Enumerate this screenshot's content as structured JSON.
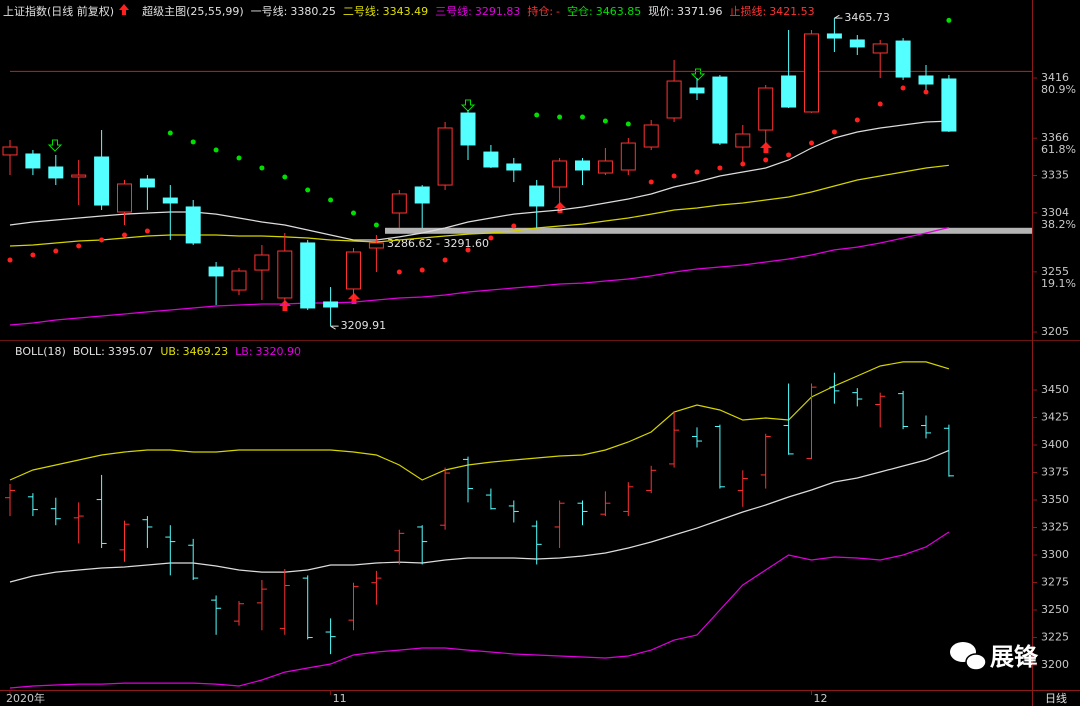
{
  "chart_data": {
    "type": "candlestick",
    "title": "上证指数(日线 前复权)",
    "subtitle": "超级主图(25,55,99)",
    "period_label": "日线",
    "watermark": "展锋",
    "categories": [
      "2020年",
      null,
      null,
      null,
      null,
      null,
      null,
      null,
      null,
      null,
      null,
      null,
      null,
      null,
      "11",
      null,
      null,
      null,
      null,
      null,
      null,
      null,
      null,
      null,
      null,
      null,
      null,
      null,
      null,
      null,
      null,
      null,
      null,
      null,
      null,
      "12",
      null,
      null,
      null,
      null,
      null,
      null
    ],
    "up_color": "#ff3232",
    "down_color": "#54ffff",
    "open": [
      3352.1,
      3352.9,
      3342.1,
      3333.8,
      3350.4,
      3304.7,
      3332.1,
      3316.3,
      3308.9,
      3259.0,
      3239.9,
      3256.5,
      3233.3,
      3279.0,
      3230.0,
      3240.8,
      3274.8,
      3303.9,
      3325.5,
      3327.1,
      3386.9,
      3354.5,
      3344.6,
      3326.3,
      3325.5,
      3347.1,
      3337.1,
      3339.6,
      3358.7,
      3382.8,
      3407.7,
      3416.8,
      3358.7,
      3372.8,
      3417.7,
      3387.8,
      3452.6,
      3447.6,
      3436.8,
      3446.7,
      3417.7,
      3415.2
    ],
    "high": [
      3364.5,
      3356.2,
      3352.1,
      3347.9,
      3372.8,
      3331.3,
      3335.4,
      3327.1,
      3314.7,
      3263.2,
      3258.2,
      3277.3,
      3287.3,
      3281.5,
      3242.4,
      3274.8,
      3285.6,
      3323.0,
      3327.1,
      3379.5,
      3389.4,
      3360.4,
      3349.6,
      3331.3,
      3349.6,
      3349.6,
      3357.9,
      3366.2,
      3381.1,
      3431.0,
      3416.0,
      3418.5,
      3377.0,
      3410.2,
      3455.9,
      3455.9,
      3465.73,
      3451.7,
      3447.6,
      3449.2,
      3426.8,
      3418.5
    ],
    "low": [
      3335.4,
      3335.4,
      3327.1,
      3310.5,
      3306.4,
      3293.9,
      3306.4,
      3281.5,
      3277.3,
      3227.5,
      3235.8,
      3231.6,
      3227.5,
      3223.3,
      3209.91,
      3231.6,
      3254.9,
      3291.4,
      3291.4,
      3323.0,
      3347.9,
      3341.3,
      3329.6,
      3291.4,
      3306.4,
      3327.1,
      3335.4,
      3335.4,
      3356.2,
      3379.5,
      3397.7,
      3360.4,
      3343.8,
      3360.4,
      3391.1,
      3387.0,
      3437.6,
      3435.1,
      3416.0,
      3414.4,
      3406.0,
      3371.2
    ],
    "close": [
      3358.7,
      3341.3,
      3333.0,
      3335.4,
      3310.5,
      3328.0,
      3325.5,
      3312.2,
      3279.0,
      3251.6,
      3255.7,
      3269.0,
      3272.3,
      3225.0,
      3225.8,
      3271.5,
      3279.0,
      3319.7,
      3312.2,
      3374.5,
      3360.4,
      3342.1,
      3339.6,
      3309.7,
      3347.1,
      3339.6,
      3347.1,
      3362.0,
      3377.0,
      3413.5,
      3403.6,
      3362.0,
      3369.5,
      3407.7,
      3391.9,
      3452.6,
      3449.2,
      3441.8,
      3444.3,
      3416.8,
      3411.0,
      3371.96
    ],
    "panels": [
      {
        "readout": [
          {
            "label": "一号线:",
            "value": 3380.25,
            "color": "#e0e0e0"
          },
          {
            "label": "二号线:",
            "value": 3343.49,
            "color": "#e0e000"
          },
          {
            "label": "三号线:",
            "value": 3291.83,
            "color": "#e000e0"
          },
          {
            "label": "持仓:",
            "value": "-",
            "color": "#ff3232"
          },
          {
            "label": "空仓:",
            "value": 3463.85,
            "color": "#00e000"
          },
          {
            "label": "现价:",
            "value": 3371.96,
            "color": "#e0e0e0"
          },
          {
            "label": "止损线:",
            "value": 3421.53,
            "color": "#ff3232"
          }
        ],
        "ylim": [
          3198.4,
          3480.8
        ],
        "yticks": [
          3416,
          3366,
          3335,
          3304,
          3255,
          3205
        ],
        "fib_labels": [
          {
            "value": 3416,
            "label": "80.9%"
          },
          {
            "value": 3366,
            "label": "61.8%"
          },
          {
            "value": 3304,
            "label": "38.2%"
          },
          {
            "value": 3255,
            "label": "19.1%"
          }
        ],
        "series": [
          {
            "color": "#dcdcdc",
            "values": [
              3293.9,
              3296.4,
              3298.1,
              3299.7,
              3301.4,
              3303.0,
              3303.9,
              3304.7,
              3304.7,
              3303.0,
              3299.7,
              3296.4,
              3293.9,
              3289.8,
              3285.6,
              3281.5,
              3281.5,
              3284.0,
              3287.3,
              3291.4,
              3296.4,
              3299.7,
              3303.0,
              3304.7,
              3306.4,
              3308.9,
              3312.2,
              3315.5,
              3319.7,
              3325.5,
              3329.6,
              3334.6,
              3337.9,
              3341.3,
              3347.9,
              3357.9,
              3366.2,
              3371.2,
              3374.5,
              3377.0,
              3379.5,
              3380.25
            ]
          },
          {
            "color": "#d4d400",
            "values": [
              3276.5,
              3277.3,
              3279.0,
              3280.6,
              3281.5,
              3283.1,
              3284.8,
              3285.6,
              3285.6,
              3285.6,
              3284.8,
              3284.8,
              3284.0,
              3283.1,
              3281.5,
              3280.6,
              3279.8,
              3281.5,
              3283.1,
              3284.8,
              3286.4,
              3287.3,
              3288.9,
              3291.4,
              3293.1,
              3294.7,
              3297.2,
              3299.7,
              3303.0,
              3306.4,
              3308.0,
              3310.5,
              3312.2,
              3314.7,
              3317.2,
              3321.3,
              3326.3,
              3331.3,
              3334.6,
              3337.9,
              3341.3,
              3343.49
            ]
          },
          {
            "color": "#e000e0",
            "values": [
              3210.9,
              3212.5,
              3215.0,
              3216.7,
              3218.3,
              3220.0,
              3221.7,
              3223.3,
              3225.0,
              3226.6,
              3227.5,
              3228.3,
              3228.3,
              3229.1,
              3229.1,
              3229.9,
              3231.6,
              3233.3,
              3234.1,
              3235.8,
              3238.3,
              3239.9,
              3241.6,
              3243.2,
              3244.9,
              3245.7,
              3247.4,
              3249.1,
              3251.6,
              3254.9,
              3257.4,
              3259.0,
              3260.7,
              3263.2,
              3265.7,
              3269.0,
              3273.2,
              3275.6,
              3279.0,
              3283.1,
              3287.3,
              3291.83
            ]
          }
        ],
        "dots": [
          {
            "color": "#ff2020",
            "values": [
              3264.8,
              3269.0,
              3272.3,
              3276.5,
              3281.5,
              3285.6,
              3288.9,
              null,
              null,
              null,
              null,
              null,
              null,
              null,
              null,
              null,
              null,
              3254.9,
              3256.5,
              3264.8,
              3273.2,
              3283.1,
              3293.1,
              null,
              null,
              null,
              null,
              null,
              3329.6,
              3334.6,
              3337.9,
              3341.3,
              3344.6,
              3347.9,
              3352.1,
              3362.0,
              3371.2,
              3381.1,
              3394.4,
              3407.7,
              3404.4,
              null
            ]
          },
          {
            "color": "#00e000",
            "values": [
              null,
              null,
              null,
              null,
              null,
              null,
              null,
              3370.3,
              3362.9,
              3356.2,
              3349.6,
              3341.3,
              3333.8,
              3323.0,
              3314.7,
              3303.9,
              3293.9,
              null,
              null,
              null,
              null,
              null,
              null,
              3385.3,
              3383.6,
              3383.6,
              3380.3,
              3377.8,
              null,
              null,
              null,
              null,
              null,
              null,
              null,
              null,
              null,
              null,
              null,
              null,
              null,
              3463.85
            ]
          }
        ],
        "stop_line": {
          "value": 3421.53,
          "color": "#c81e1e"
        },
        "band": {
          "low": 3286.62,
          "high": 3291.6,
          "label": "3286.62 - 3291.60",
          "color": "#b4b4b4"
        }
      },
      {
        "title": "BOLL(18)",
        "readout": [
          {
            "label": "BOLL:",
            "value": 3395.07,
            "color": "#e0e0e0"
          },
          {
            "label": "UB:",
            "value": 3469.23,
            "color": "#e0e000"
          },
          {
            "label": "LB:",
            "value": "3320.90",
            "color": "#e000e0"
          }
        ],
        "ylim": [
          3177.3,
          3490.9
        ],
        "yticks": [
          3450,
          3425,
          3400,
          3375,
          3350,
          3325,
          3300,
          3275,
          3250,
          3225,
          3200
        ],
        "series": [
          {
            "color": "#dcdcdc",
            "values": [
              3275.5,
              3280.9,
              3284.5,
              3286.4,
              3288.2,
              3289.1,
              3290.9,
              3292.7,
              3292.7,
              3290.0,
              3286.4,
              3284.5,
              3284.5,
              3286.4,
              3290.9,
              3290.9,
              3292.7,
              3293.6,
              3292.7,
              3295.5,
              3297.3,
              3297.3,
              3297.3,
              3296.4,
              3297.3,
              3299.1,
              3301.8,
              3306.4,
              3311.8,
              3318.2,
              3324.5,
              3331.8,
              3339.1,
              3345.5,
              3352.7,
              3359.1,
              3366.4,
              3370.0,
              3375.5,
              3380.9,
              3386.4,
              3395.07
            ]
          },
          {
            "color": "#d4d400",
            "values": [
              3368.2,
              3377.3,
              3381.8,
              3386.4,
              3390.9,
              3393.6,
              3395.5,
              3395.5,
              3393.6,
              3393.6,
              3395.5,
              3395.5,
              3395.5,
              3395.5,
              3395.5,
              3393.6,
              3390.9,
              3381.8,
              3368.2,
              3377.3,
              3381.8,
              3384.5,
              3386.4,
              3388.2,
              3390.0,
              3390.9,
              3395.5,
              3402.7,
              3411.8,
              3430.0,
              3436.4,
              3431.8,
              3422.7,
              3424.5,
              3422.7,
              3443.6,
              3453.6,
              3462.7,
              3471.8,
              3475.5,
              3475.5,
              3469.23
            ]
          },
          {
            "color": "#e000e0",
            "values": [
              3179.1,
              3180.9,
              3181.8,
              3182.7,
              3182.7,
              3183.6,
              3183.6,
              3183.6,
              3183.6,
              3182.7,
              3180.9,
              3186.4,
              3193.6,
              3197.3,
              3200.9,
              3209.1,
              3211.8,
              3213.6,
              3215.5,
              3215.5,
              3213.6,
              3211.8,
              3210.0,
              3209.1,
              3208.2,
              3207.3,
              3206.4,
              3208.2,
              3213.6,
              3222.7,
              3227.3,
              3250.0,
              3272.7,
              3286.4,
              3300.0,
              3295.5,
              3298.2,
              3297.3,
              3295.5,
              3300.0,
              3307.3,
              3320.9
            ]
          }
        ]
      }
    ]
  }
}
